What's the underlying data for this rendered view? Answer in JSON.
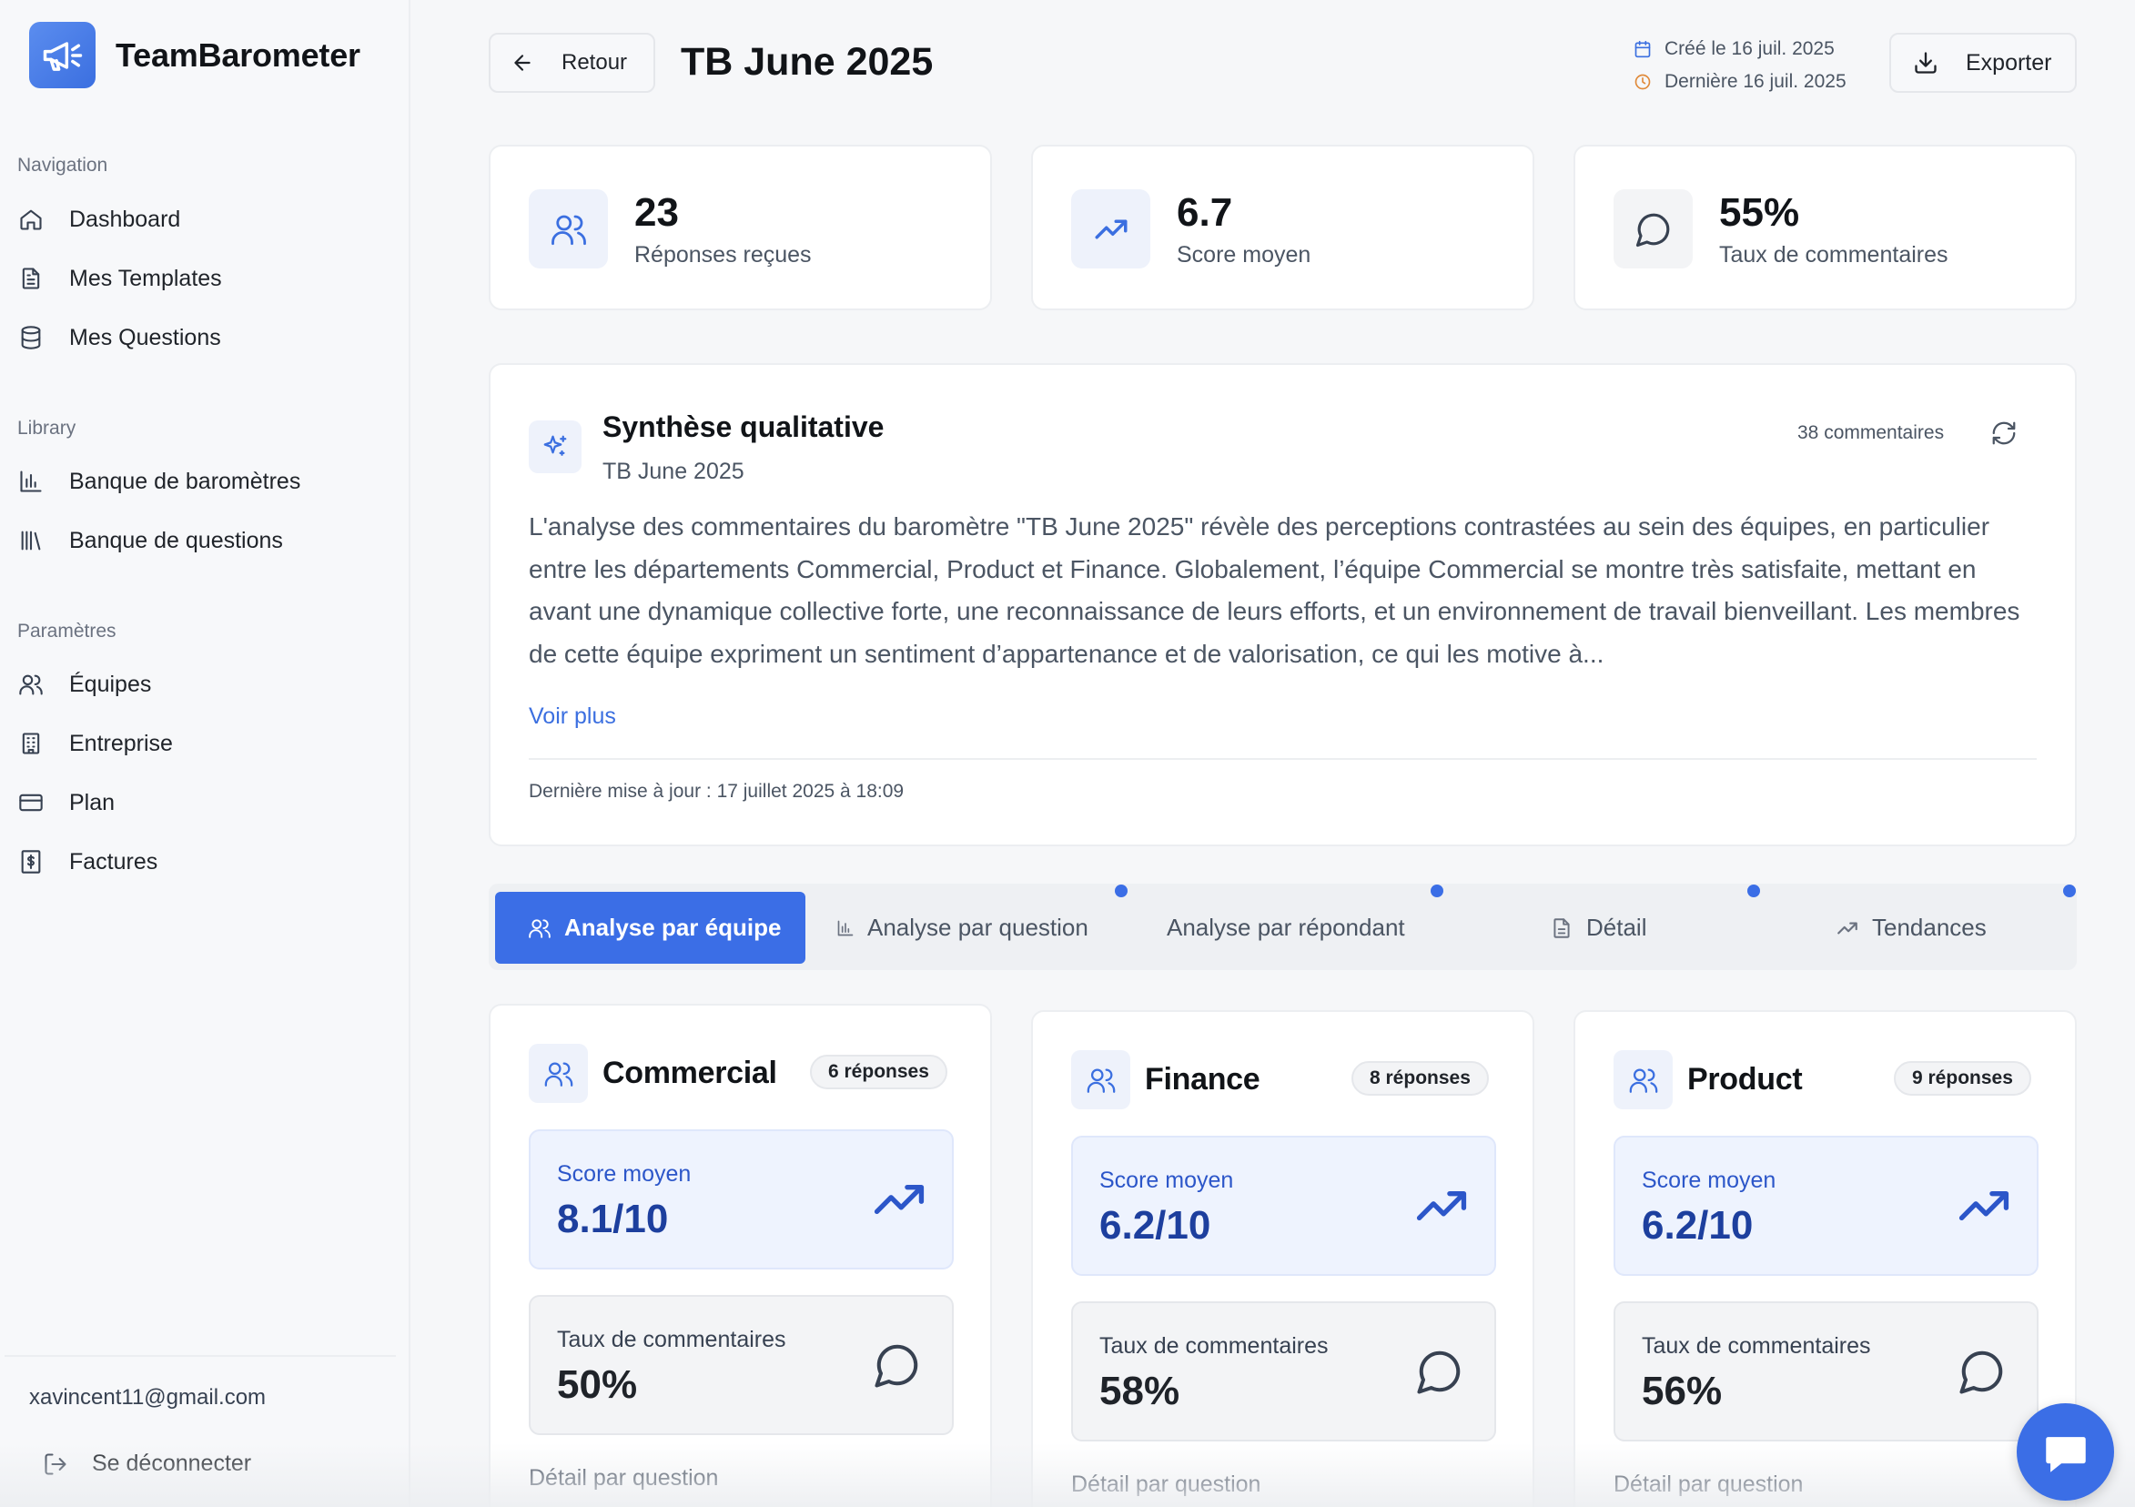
{
  "app": {
    "name": "TeamBarometer"
  },
  "sidebar": {
    "sections": [
      {
        "title": "Navigation",
        "items": [
          {
            "label": "Dashboard",
            "icon": "home-icon"
          },
          {
            "label": "Mes Templates",
            "icon": "file-icon"
          },
          {
            "label": "Mes Questions",
            "icon": "database-icon"
          }
        ]
      },
      {
        "title": "Library",
        "items": [
          {
            "label": "Banque de baromètres",
            "icon": "bar-chart-icon"
          },
          {
            "label": "Banque de questions",
            "icon": "library-icon"
          }
        ]
      },
      {
        "title": "Paramètres",
        "items": [
          {
            "label": "Équipes",
            "icon": "users-icon"
          },
          {
            "label": "Entreprise",
            "icon": "building-icon"
          },
          {
            "label": "Plan",
            "icon": "credit-card-icon"
          },
          {
            "label": "Factures",
            "icon": "invoice-icon"
          }
        ]
      }
    ],
    "user_email": "xavincent11@gmail.com",
    "logout_label": "Se déconnecter"
  },
  "header": {
    "back_label": "Retour",
    "title": "TB June 2025",
    "created": "Créé le 16 juil. 2025",
    "last": "Dernière 16 juil. 2025",
    "export_label": "Exporter"
  },
  "stats": [
    {
      "value": "23",
      "label": "Réponses reçues",
      "icon": "users-icon"
    },
    {
      "value": "6.7",
      "label": "Score moyen",
      "icon": "trending-up-icon"
    },
    {
      "value": "55%",
      "label": "Taux de commentaires",
      "icon": "message-icon"
    }
  ],
  "synthesis": {
    "title": "Synthèse qualitative",
    "subtitle": "TB June 2025",
    "comments_count": "38 commentaires",
    "body": "L'analyse des commentaires du baromètre \"TB June 2025\" révèle des perceptions contrastées au sein des équipes, en particulier entre les départements Commercial, Product et Finance. Globalement, l’équipe Commercial se montre très satisfaite, mettant en avant une dynamique collective forte, une reconnaissance de leurs efforts, et un environnement de travail bienveillant. Les membres de cette équipe expriment un sentiment d’appartenance et de valorisation, ce qui les motive à...",
    "voir_plus": "Voir plus",
    "updated": "Dernière mise à jour : 17 juillet 2025 à 18:09"
  },
  "tabs": [
    {
      "label": "Analyse par équipe",
      "icon": "users-icon",
      "active": true
    },
    {
      "label": "Analyse par question",
      "icon": "bar-chart-icon",
      "active": false
    },
    {
      "label": "Analyse par répondant",
      "icon": "",
      "active": false
    },
    {
      "label": "Détail",
      "icon": "file-icon",
      "active": false
    },
    {
      "label": "Tendances",
      "icon": "trending-up-icon",
      "active": false
    }
  ],
  "teams": [
    {
      "name": "Commercial",
      "responses": "6 réponses",
      "score_label": "Score moyen",
      "score": "8.1/10",
      "comment_label": "Taux de commentaires",
      "comment_rate": "50%",
      "detail_label": "Détail par question"
    },
    {
      "name": "Finance",
      "responses": "8 réponses",
      "score_label": "Score moyen",
      "score": "6.2/10",
      "comment_label": "Taux de commentaires",
      "comment_rate": "58%",
      "detail_label": "Détail par question"
    },
    {
      "name": "Product",
      "responses": "9 réponses",
      "score_label": "Score moyen",
      "score": "6.2/10",
      "comment_label": "Taux de commentaires",
      "comment_rate": "56%",
      "detail_label": "Détail par question"
    }
  ],
  "colors": {
    "accent": "#3b6ee6",
    "score_text": "#1d3f9e",
    "score_bg": "#eef3fe",
    "created_icon": "#3b6fe0",
    "last_icon": "#e08a3b"
  }
}
